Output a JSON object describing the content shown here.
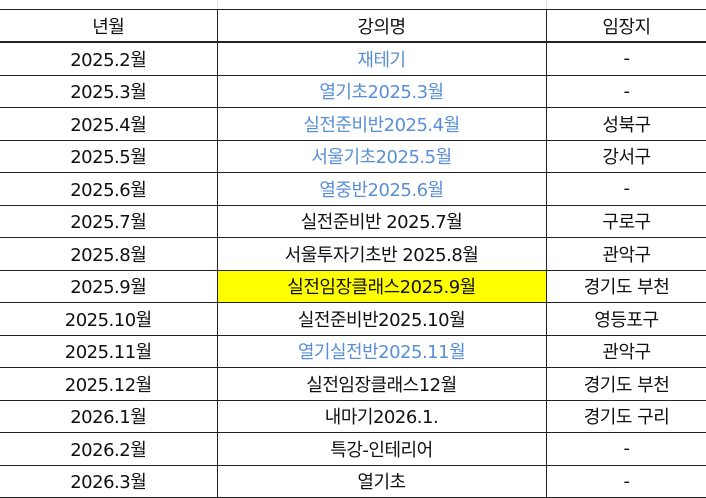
{
  "headers": [
    "년월",
    "강의명",
    "임장지"
  ],
  "colors": {
    "link_text": "#5a8fd8",
    "highlight": "#ffff00"
  },
  "rows": [
    {
      "month": "2025.2월",
      "lecture": "재테기",
      "location": "-",
      "blue": true
    },
    {
      "month": "2025.3월",
      "lecture": "열기초2025.3월",
      "location": "-",
      "blue": true
    },
    {
      "month": "2025.4월",
      "lecture": "실전준비반2025.4월",
      "location": "성북구",
      "blue": true
    },
    {
      "month": "2025.5월",
      "lecture": "서울기초2025.5월",
      "location": "강서구",
      "blue": true
    },
    {
      "month": "2025.6월",
      "lecture": "열중반2025.6월",
      "location": "-",
      "blue": true
    },
    {
      "month": "2025.7월",
      "lecture": "실전준비반 2025.7월",
      "location": "구로구"
    },
    {
      "month": "2025.8월",
      "lecture": "서울투자기초반 2025.8월",
      "location": "관악구"
    },
    {
      "month": "2025.9월",
      "lecture": "실전임장클래스2025.9월",
      "location": "경기도 부천",
      "highlight": true
    },
    {
      "month": "2025.10월",
      "lecture": "실전준비반2025.10월",
      "location": "영등포구"
    },
    {
      "month": "2025.11월",
      "lecture": "열기실전반2025.11월",
      "location": "관악구",
      "blue": true
    },
    {
      "month": "2025.12월",
      "lecture": "실전임장클래스12월",
      "location": "경기도 부천"
    },
    {
      "month": "2026.1월",
      "lecture": "내마기2026.1.",
      "location": "경기도 구리"
    },
    {
      "month": "2026.2월",
      "lecture": "특강-인테리어",
      "location": "-"
    },
    {
      "month": "2026.3월",
      "lecture": "열기초",
      "location": "-"
    }
  ]
}
